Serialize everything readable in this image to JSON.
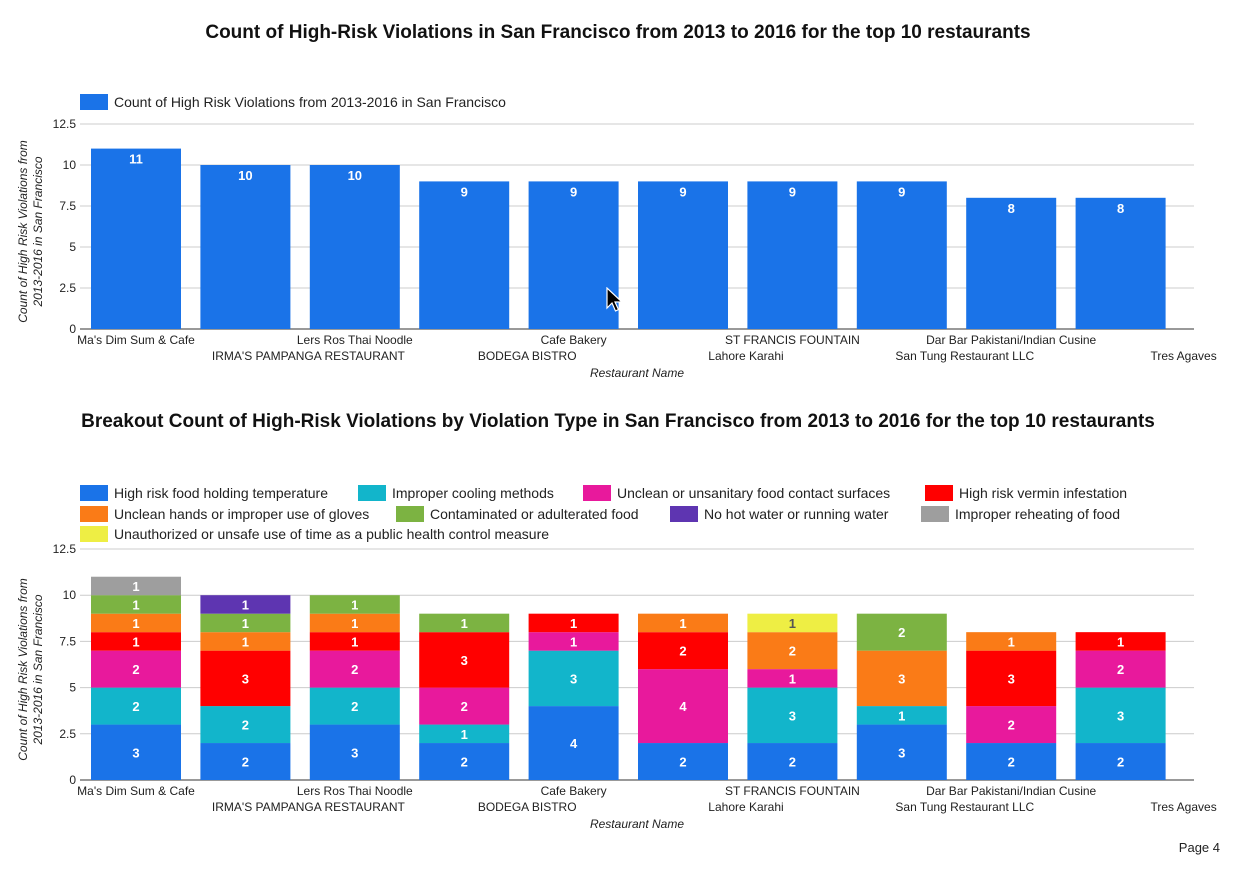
{
  "page": {
    "label": "Page 4"
  },
  "chart_data": [
    {
      "type": "bar",
      "title": "Count of High-Risk Violations in San Francisco from 2013 to 2016 for the top 10 restaurants",
      "xlabel": "Restaurant Name",
      "ylabel": "Count of High Risk Violations from 2013-2016 in San Francisco",
      "ylabel_lines": [
        "Count of High Risk Violations from",
        "2013-2016 in San Francisco"
      ],
      "ylim": [
        0,
        12.5
      ],
      "yticks": [
        "0",
        "2.5",
        "5",
        "7.5",
        "10",
        "12.5"
      ],
      "categories": [
        "Ma's Dim Sum & Cafe",
        "IRMA'S PAMPANGA RESTAURANT",
        "Lers Ros Thai Noodle",
        "BODEGA BISTRO",
        "Cafe Bakery",
        "Lahore Karahi",
        "ST FRANCIS FOUNTAIN",
        "San Tung Restaurant LLC",
        "Dar Bar Pakistani/Indian Cusine",
        "Tres Agaves"
      ],
      "legend": "top-left",
      "series": [
        {
          "name": "Count of High Risk Violations from 2013-2016 in San Francisco",
          "color": "#1a73e8",
          "values": [
            11,
            10,
            10,
            9,
            9,
            9,
            9,
            9,
            8,
            8
          ]
        }
      ]
    },
    {
      "type": "bar",
      "stacked": true,
      "title": "Breakout Count of High-Risk Violations by Violation Type in San Francisco from 2013 to 2016 for the top 10 restaurants",
      "xlabel": "Restaurant Name",
      "ylabel": "Count of High Risk Violations from 2013-2016 in San Francisco",
      "ylabel_lines": [
        "Count of High Risk Violations from",
        "2013-2016 in San Francisco"
      ],
      "ylim": [
        0,
        12.5
      ],
      "yticks": [
        "0",
        "2.5",
        "5",
        "7.5",
        "10",
        "12.5"
      ],
      "categories": [
        "Ma's Dim Sum & Cafe",
        "IRMA'S PAMPANGA RESTAURANT",
        "Lers Ros Thai Noodle",
        "BODEGA BISTRO",
        "Cafe Bakery",
        "Lahore Karahi",
        "ST FRANCIS FOUNTAIN",
        "San Tung Restaurant LLC",
        "Dar Bar Pakistani/Indian Cusine",
        "Tres Agaves"
      ],
      "legend": "top-left",
      "series": [
        {
          "name": "High risk food holding temperature",
          "color": "#1a73e8",
          "values": [
            3,
            2,
            3,
            2,
            4,
            2,
            2,
            3,
            2,
            2
          ]
        },
        {
          "name": "Improper cooling methods",
          "color": "#12b5cb",
          "values": [
            2,
            2,
            2,
            1,
            3,
            0,
            3,
            1,
            0,
            3
          ]
        },
        {
          "name": "Unclean or unsanitary food contact surfaces",
          "color": "#e8199c",
          "values": [
            2,
            0,
            2,
            2,
            1,
            4,
            1,
            0,
            2,
            2
          ]
        },
        {
          "name": "High risk vermin infestation",
          "color": "#ff0000",
          "values": [
            1,
            3,
            1,
            3,
            1,
            2,
            0,
            0,
            3,
            1
          ]
        },
        {
          "name": "Unclean hands or improper use of gloves",
          "color": "#fa7b17",
          "values": [
            1,
            1,
            1,
            0,
            0,
            1,
            2,
            3,
            1,
            0
          ]
        },
        {
          "name": "Contaminated or adulterated food",
          "color": "#7cb342",
          "values": [
            1,
            1,
            1,
            1,
            0,
            0,
            0,
            2,
            0,
            0
          ]
        },
        {
          "name": "No hot water or running water",
          "color": "#5e35b1",
          "values": [
            0,
            1,
            0,
            0,
            0,
            0,
            0,
            0,
            0,
            0
          ]
        },
        {
          "name": "Improper reheating of food",
          "color": "#9e9e9e",
          "values": [
            1,
            0,
            0,
            0,
            0,
            0,
            0,
            0,
            0,
            0
          ]
        },
        {
          "name": "Unauthorized or unsafe use of time as a public health control measure",
          "color": "#eeee44",
          "values": [
            0,
            0,
            0,
            0,
            0,
            0,
            1,
            0,
            0,
            0
          ]
        }
      ]
    }
  ]
}
